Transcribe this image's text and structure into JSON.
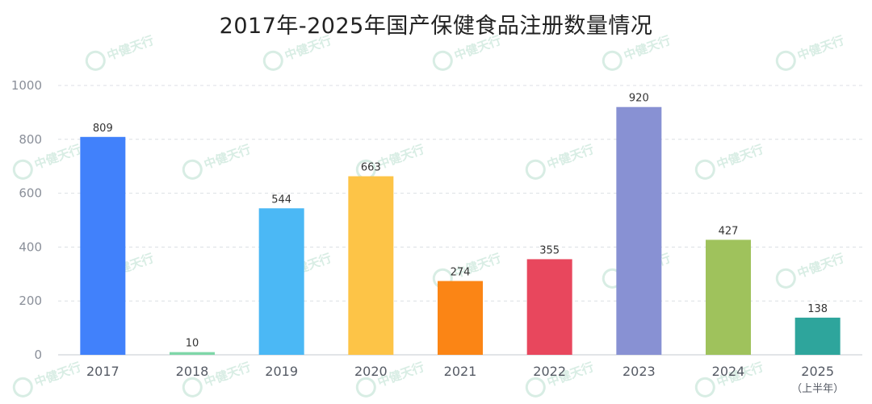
{
  "chart_data": {
    "type": "bar",
    "title": "2017年-2025年国产保健食品注册数量情况",
    "categories": [
      "2017",
      "2018",
      "2019",
      "2020",
      "2021",
      "2022",
      "2023",
      "2024",
      "2025"
    ],
    "category_notes": [
      "",
      "",
      "",
      "",
      "",
      "",
      "",
      "",
      "（上半年）"
    ],
    "values": [
      809,
      10,
      544,
      663,
      274,
      355,
      920,
      427,
      138
    ],
    "colors": [
      "#4181fb",
      "#7fd7a8",
      "#4bb8f5",
      "#fdc447",
      "#fb8515",
      "#e8475d",
      "#8891d3",
      "#9fc25c",
      "#2ea59c"
    ],
    "ylim": [
      0,
      1000
    ],
    "yticks": [
      0,
      200,
      400,
      600,
      800,
      1000
    ],
    "xlabel": "",
    "ylabel": "",
    "grid": true,
    "watermark": "中健天行"
  }
}
